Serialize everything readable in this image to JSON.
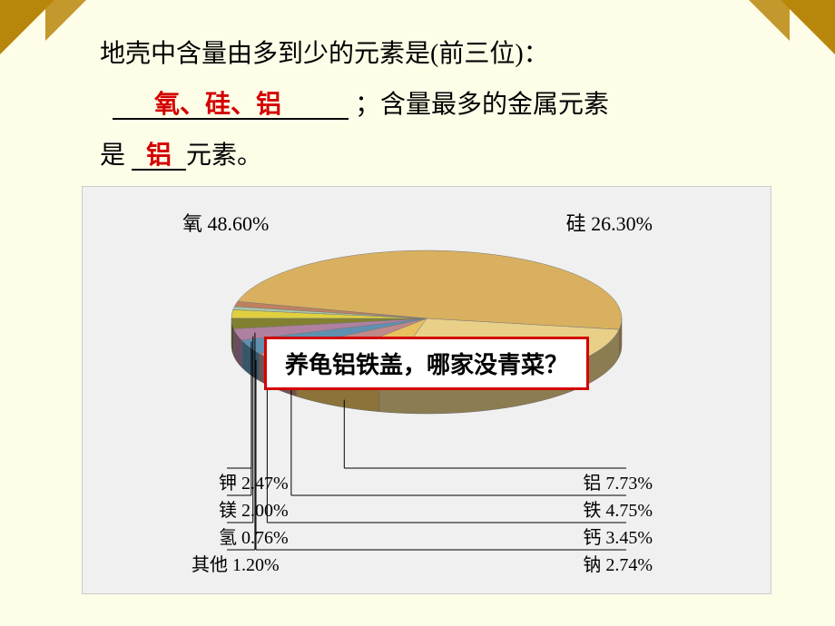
{
  "decor": {
    "corner_color": "#b8860b",
    "background": "#fefee8"
  },
  "question": {
    "line1_prefix": "地壳中含量由多到少的元素是",
    "line1_paren": "(前三位)",
    "line1_colon": "：",
    "blank1_answer": "氧、硅、铝",
    "line2_prefix": "；含量最多的金属元素",
    "line3_prefix": "是",
    "blank2_answer": "铝",
    "line3_suffix": "元素。"
  },
  "chart": {
    "type": "pie",
    "title_left": "氧 48.60%",
    "title_right": "硅 26.30%",
    "mnemonic": "养龟铝铁盖，哪家没青菜？",
    "mnemonic_border": "#d40000",
    "background": "#f0f0f0",
    "slices": [
      {
        "name": "氧",
        "value": 48.6,
        "color": "#d8b060"
      },
      {
        "name": "硅",
        "value": 26.3,
        "color": "#e8d088"
      },
      {
        "name": "铝",
        "value": 7.73,
        "color": "#e8c060"
      },
      {
        "name": "铁",
        "value": 4.75,
        "color": "#c08888"
      },
      {
        "name": "钙",
        "value": 3.45,
        "color": "#6090b0"
      },
      {
        "name": "钠",
        "value": 2.74,
        "color": "#b080a0"
      },
      {
        "name": "钾",
        "value": 2.47,
        "color": "#808030"
      },
      {
        "name": "镁",
        "value": 2.0,
        "color": "#e0d040"
      },
      {
        "name": "氢",
        "value": 0.76,
        "color": "#a8c8a8"
      },
      {
        "name": "其他",
        "value": 1.2,
        "color": "#c08060"
      }
    ],
    "labels_left": [
      {
        "text": "钾 2.47%"
      },
      {
        "text": "镁 2.00%"
      },
      {
        "text": "氢 0.76%"
      },
      {
        "text": "其他 1.20%"
      }
    ],
    "labels_right": [
      {
        "text": "铝 7.73%"
      },
      {
        "text": "铁 4.75%"
      },
      {
        "text": "钙 3.45%"
      },
      {
        "text": "钠 2.74%"
      }
    ],
    "side_thickness": 30,
    "label_fontsize": 20,
    "title_fontsize": 22
  }
}
